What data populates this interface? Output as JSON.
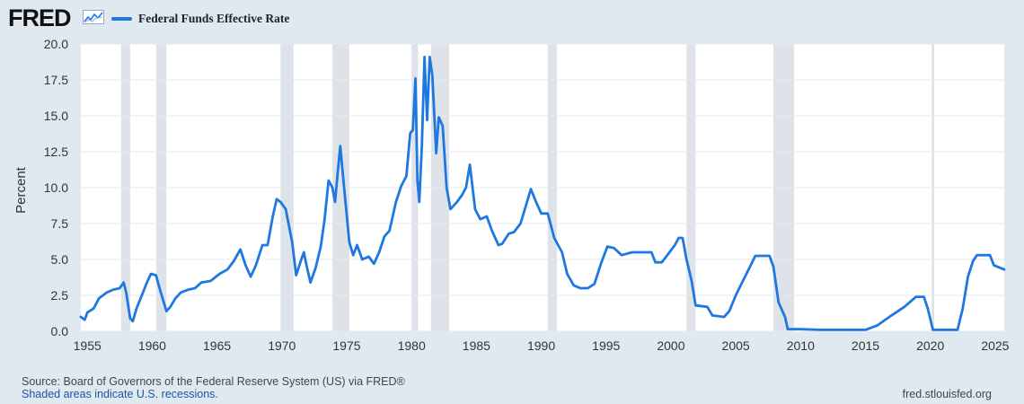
{
  "header": {
    "logo_text": "FRED",
    "logo_icon": "sparkline-chart-icon",
    "legend_label": "Federal Funds Effective Rate",
    "series_color": "#1f77e0"
  },
  "footer": {
    "source": "Source: Board of Governors of the Federal Reserve System (US) via FRED®",
    "recession_note": "Shaded areas indicate U.S. recessions.",
    "url": "fred.stlouisfed.org"
  },
  "chart_data": {
    "type": "line",
    "ylabel": "Percent",
    "xlabel": "",
    "xlim": [
      1954.5,
      2025.7
    ],
    "ylim": [
      0,
      20
    ],
    "grid": "horizontal",
    "x_ticks": [
      1955,
      1960,
      1965,
      1970,
      1975,
      1980,
      1985,
      1990,
      1995,
      2000,
      2005,
      2010,
      2015,
      2020,
      2025
    ],
    "y_ticks": [
      0,
      2.5,
      5,
      7.5,
      10,
      12.5,
      15,
      17.5,
      20
    ],
    "y_tick_labels": [
      "0.0",
      "2.5",
      "5.0",
      "7.5",
      "10.0",
      "12.5",
      "15.0",
      "17.5",
      "20.0"
    ],
    "recessions": [
      [
        1957.6,
        1958.3
      ],
      [
        1960.3,
        1961.1
      ],
      [
        1969.9,
        1970.9
      ],
      [
        1973.9,
        1975.2
      ],
      [
        1980.0,
        1980.5
      ],
      [
        1981.5,
        1982.9
      ],
      [
        1990.5,
        1991.2
      ],
      [
        2001.2,
        2001.9
      ],
      [
        2007.9,
        2009.5
      ],
      [
        2020.1,
        2020.3
      ]
    ],
    "series": [
      {
        "name": "Federal Funds Effective Rate",
        "color": "#1f77e0",
        "points": [
          [
            1954.5,
            1.0
          ],
          [
            1954.8,
            0.8
          ],
          [
            1955.0,
            1.3
          ],
          [
            1955.5,
            1.6
          ],
          [
            1955.9,
            2.3
          ],
          [
            1956.5,
            2.7
          ],
          [
            1957.0,
            2.9
          ],
          [
            1957.5,
            3.0
          ],
          [
            1957.8,
            3.4
          ],
          [
            1958.0,
            2.7
          ],
          [
            1958.3,
            0.9
          ],
          [
            1958.5,
            0.7
          ],
          [
            1958.8,
            1.6
          ],
          [
            1959.2,
            2.5
          ],
          [
            1959.6,
            3.4
          ],
          [
            1959.9,
            4.0
          ],
          [
            1960.3,
            3.9
          ],
          [
            1960.6,
            2.9
          ],
          [
            1960.9,
            2.0
          ],
          [
            1961.1,
            1.4
          ],
          [
            1961.4,
            1.7
          ],
          [
            1961.8,
            2.3
          ],
          [
            1962.2,
            2.7
          ],
          [
            1962.8,
            2.9
          ],
          [
            1963.3,
            3.0
          ],
          [
            1963.8,
            3.4
          ],
          [
            1964.5,
            3.5
          ],
          [
            1965.2,
            4.0
          ],
          [
            1965.8,
            4.3
          ],
          [
            1966.3,
            4.9
          ],
          [
            1966.8,
            5.7
          ],
          [
            1967.2,
            4.6
          ],
          [
            1967.6,
            3.8
          ],
          [
            1968.0,
            4.6
          ],
          [
            1968.5,
            6.0
          ],
          [
            1968.9,
            6.0
          ],
          [
            1969.3,
            8.0
          ],
          [
            1969.6,
            9.2
          ],
          [
            1969.9,
            9.0
          ],
          [
            1970.3,
            8.5
          ],
          [
            1970.8,
            6.2
          ],
          [
            1971.1,
            3.9
          ],
          [
            1971.5,
            5.0
          ],
          [
            1971.7,
            5.5
          ],
          [
            1971.9,
            4.6
          ],
          [
            1972.2,
            3.4
          ],
          [
            1972.6,
            4.4
          ],
          [
            1973.0,
            5.9
          ],
          [
            1973.3,
            7.8
          ],
          [
            1973.6,
            10.5
          ],
          [
            1973.9,
            10.0
          ],
          [
            1974.1,
            9.0
          ],
          [
            1974.3,
            11.0
          ],
          [
            1974.5,
            12.9
          ],
          [
            1974.8,
            10.0
          ],
          [
            1975.2,
            6.2
          ],
          [
            1975.5,
            5.3
          ],
          [
            1975.8,
            6.0
          ],
          [
            1976.2,
            5.0
          ],
          [
            1976.7,
            5.2
          ],
          [
            1977.1,
            4.7
          ],
          [
            1977.5,
            5.5
          ],
          [
            1977.9,
            6.6
          ],
          [
            1978.3,
            7.0
          ],
          [
            1978.8,
            9.0
          ],
          [
            1979.2,
            10.1
          ],
          [
            1979.6,
            10.8
          ],
          [
            1979.9,
            13.8
          ],
          [
            1980.1,
            14.0
          ],
          [
            1980.3,
            17.6
          ],
          [
            1980.45,
            10.5
          ],
          [
            1980.6,
            9.0
          ],
          [
            1980.8,
            13.0
          ],
          [
            1981.0,
            19.1
          ],
          [
            1981.2,
            14.7
          ],
          [
            1981.4,
            19.1
          ],
          [
            1981.6,
            17.8
          ],
          [
            1981.9,
            12.4
          ],
          [
            1982.1,
            14.9
          ],
          [
            1982.4,
            14.3
          ],
          [
            1982.7,
            10.0
          ],
          [
            1983.0,
            8.5
          ],
          [
            1983.5,
            9.0
          ],
          [
            1983.9,
            9.5
          ],
          [
            1984.2,
            10.0
          ],
          [
            1984.5,
            11.6
          ],
          [
            1984.9,
            8.5
          ],
          [
            1985.3,
            7.8
          ],
          [
            1985.8,
            8.0
          ],
          [
            1986.2,
            7.0
          ],
          [
            1986.7,
            6.0
          ],
          [
            1987.0,
            6.1
          ],
          [
            1987.5,
            6.8
          ],
          [
            1987.9,
            6.9
          ],
          [
            1988.4,
            7.5
          ],
          [
            1988.9,
            9.0
          ],
          [
            1989.2,
            9.9
          ],
          [
            1989.6,
            9.0
          ],
          [
            1990.0,
            8.2
          ],
          [
            1990.5,
            8.2
          ],
          [
            1991.0,
            6.5
          ],
          [
            1991.6,
            5.5
          ],
          [
            1992.0,
            4.0
          ],
          [
            1992.5,
            3.2
          ],
          [
            1993.0,
            3.0
          ],
          [
            1993.6,
            3.0
          ],
          [
            1994.1,
            3.3
          ],
          [
            1994.6,
            4.7
          ],
          [
            1995.1,
            5.9
          ],
          [
            1995.6,
            5.8
          ],
          [
            1996.2,
            5.3
          ],
          [
            1997.0,
            5.5
          ],
          [
            1997.8,
            5.5
          ],
          [
            1998.5,
            5.5
          ],
          [
            1998.8,
            4.8
          ],
          [
            1999.3,
            4.8
          ],
          [
            1999.8,
            5.4
          ],
          [
            2000.3,
            6.0
          ],
          [
            2000.6,
            6.5
          ],
          [
            2000.9,
            6.5
          ],
          [
            2001.2,
            5.0
          ],
          [
            2001.6,
            3.5
          ],
          [
            2001.9,
            1.8
          ],
          [
            2002.8,
            1.7
          ],
          [
            2003.2,
            1.1
          ],
          [
            2004.1,
            1.0
          ],
          [
            2004.5,
            1.4
          ],
          [
            2005.0,
            2.5
          ],
          [
            2005.6,
            3.6
          ],
          [
            2006.1,
            4.5
          ],
          [
            2006.5,
            5.25
          ],
          [
            2007.6,
            5.25
          ],
          [
            2007.9,
            4.5
          ],
          [
            2008.3,
            2.0
          ],
          [
            2008.8,
            1.0
          ],
          [
            2009.0,
            0.15
          ],
          [
            2010.0,
            0.15
          ],
          [
            2011.5,
            0.1
          ],
          [
            2015.0,
            0.1
          ],
          [
            2015.9,
            0.4
          ],
          [
            2017.0,
            1.1
          ],
          [
            2018.0,
            1.7
          ],
          [
            2018.9,
            2.4
          ],
          [
            2019.5,
            2.4
          ],
          [
            2019.8,
            1.6
          ],
          [
            2020.2,
            0.1
          ],
          [
            2022.1,
            0.1
          ],
          [
            2022.5,
            1.6
          ],
          [
            2022.9,
            3.8
          ],
          [
            2023.3,
            4.9
          ],
          [
            2023.6,
            5.3
          ],
          [
            2024.6,
            5.3
          ],
          [
            2024.9,
            4.6
          ],
          [
            2025.7,
            4.3
          ]
        ]
      }
    ]
  }
}
